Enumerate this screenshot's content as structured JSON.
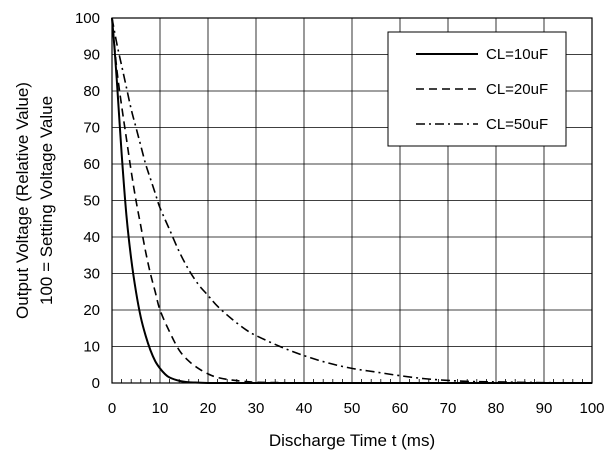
{
  "chart_data": {
    "type": "line",
    "title": "",
    "xlabel": "Discharge Time t (ms)",
    "ylabel_line1": "Output Voltage (Relative Value)",
    "ylabel_line2": "100 = Setting Voltage Value",
    "xlim": [
      0,
      100
    ],
    "ylim": [
      0,
      100
    ],
    "xticks": [
      0,
      10,
      20,
      30,
      40,
      50,
      60,
      70,
      80,
      90,
      100
    ],
    "yticks": [
      0,
      10,
      20,
      30,
      40,
      50,
      60,
      70,
      80,
      90,
      100
    ],
    "grid": true,
    "legend_position": "top-right",
    "series": [
      {
        "name": "CL=10uF",
        "dash": "solid",
        "x": [
          0,
          0.5,
          1,
          2,
          3,
          4,
          5,
          6,
          7,
          8,
          9,
          10,
          11,
          12,
          14,
          16,
          18,
          20,
          25,
          30,
          40,
          50,
          60,
          70,
          80,
          90,
          100
        ],
        "y": [
          100,
          92,
          83,
          63,
          46,
          34,
          25,
          18,
          13,
          9,
          6,
          4,
          2.5,
          1.5,
          0.6,
          0.2,
          0.1,
          0,
          0,
          0,
          0,
          0,
          0,
          0,
          0,
          0,
          0
        ]
      },
      {
        "name": "CL=20uF",
        "dash": "dashed",
        "x": [
          0,
          1,
          2,
          3,
          4,
          5,
          6,
          7,
          8,
          9,
          10,
          12,
          14,
          16,
          18,
          20,
          22,
          25,
          28,
          30,
          35,
          40,
          50,
          60,
          70,
          80,
          90,
          100
        ],
        "y": [
          100,
          86,
          76,
          67,
          58,
          50,
          43,
          36,
          30,
          25,
          20,
          14,
          9,
          6,
          4,
          2.5,
          1.5,
          0.8,
          0.4,
          0.2,
          0.1,
          0,
          0,
          0,
          0,
          0,
          0,
          0
        ]
      },
      {
        "name": "CL=50uF",
        "dash": "dashdot",
        "x": [
          0,
          1,
          2,
          3,
          4,
          5,
          6,
          7,
          8,
          9,
          10,
          12,
          14,
          16,
          18,
          20,
          22,
          25,
          28,
          30,
          35,
          40,
          45,
          50,
          55,
          60,
          65,
          70,
          75,
          80,
          90,
          100
        ],
        "y": [
          100,
          93,
          87,
          81,
          75,
          70,
          65,
          60,
          56,
          52,
          48,
          42,
          36,
          31,
          27,
          24,
          21,
          17.5,
          14.5,
          13,
          10,
          7.5,
          5.5,
          4,
          3,
          2,
          1.2,
          0.7,
          0.4,
          0.3,
          0.1,
          0
        ]
      }
    ]
  },
  "colors": {
    "line": "#000000",
    "grid": "#000000",
    "background": "#ffffff"
  }
}
